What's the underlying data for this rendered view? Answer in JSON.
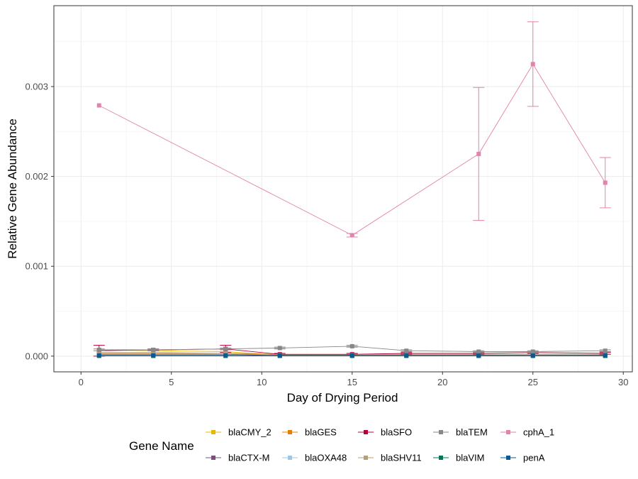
{
  "chart_data": {
    "type": "line",
    "xlabel": "Day of Drying Period",
    "ylabel": "Relative Gene Abundance",
    "xlim": [
      -1.5,
      30.5
    ],
    "ylim": [
      -0.000175,
      0.0039
    ],
    "x_ticks": [
      0,
      5,
      10,
      15,
      20,
      25,
      30
    ],
    "x_tick_labels": [
      "0",
      "5",
      "10",
      "15",
      "20",
      "25",
      "30"
    ],
    "y_ticks": [
      0,
      0.001,
      0.002,
      0.003
    ],
    "y_tick_labels": [
      "0.000",
      "0.001",
      "0.002",
      "0.003"
    ],
    "y_minor_ticks": [
      0.0005,
      0.0015,
      0.0025,
      0.0035
    ],
    "x_minor_ticks": [
      2.5,
      7.5,
      12.5,
      17.5,
      22.5,
      27.5
    ],
    "grid": true,
    "legend": {
      "title": "Gene Name",
      "position": "bottom"
    },
    "series": [
      {
        "name": "blaCMY_2",
        "color": "#E7B800",
        "x": [
          1,
          4,
          8,
          11,
          15,
          18,
          22,
          25,
          29
        ],
        "y": [
          7e-05,
          6e-05,
          5e-05,
          1e-05,
          1e-05,
          1e-05,
          1e-05,
          1e-05,
          1e-05
        ]
      },
      {
        "name": "blaCTX-M",
        "color": "#7A4F80",
        "x": [
          1,
          4,
          8,
          11,
          15,
          18,
          22,
          25,
          29
        ],
        "y": [
          2e-05,
          2e-05,
          2e-05,
          1e-05,
          1e-05,
          1e-05,
          1e-05,
          1e-05,
          1e-05
        ]
      },
      {
        "name": "blaGES",
        "color": "#E77E00",
        "x": [
          1,
          4,
          8,
          11,
          15,
          18,
          22,
          25,
          29
        ],
        "y": [
          3e-05,
          3e-05,
          3e-05,
          2e-05,
          2e-05,
          2e-05,
          2e-05,
          2e-05,
          2e-05
        ]
      },
      {
        "name": "blaOXA48",
        "color": "#9CC7E8",
        "x": [
          1,
          4,
          8,
          11,
          15,
          18,
          22,
          25,
          29
        ],
        "y": [
          5e-06,
          5e-06,
          5e-06,
          5e-06,
          5e-06,
          5e-06,
          5e-06,
          5e-06,
          5e-06
        ]
      },
      {
        "name": "blaSFO",
        "color": "#B3003C",
        "x": [
          1,
          4,
          8,
          11,
          15,
          18,
          22,
          25,
          29
        ],
        "y": [
          6e-05,
          7e-05,
          8e-05,
          2e-05,
          2e-05,
          3e-05,
          3e-05,
          4e-05,
          3e-05
        ],
        "err": [
          6e-05,
          1e-05,
          4e-05,
          1e-05,
          1e-05,
          1e-05,
          1e-05,
          1e-05,
          1e-05
        ]
      },
      {
        "name": "blaSHV11",
        "color": "#B3A079",
        "x": [
          1,
          4,
          8,
          11,
          15,
          18,
          22,
          25,
          29
        ],
        "y": [
          4e-05,
          4e-05,
          3e-05,
          1e-05,
          1e-05,
          1e-05,
          1e-05,
          1e-05,
          1e-05
        ]
      },
      {
        "name": "blaTEM",
        "color": "#878787",
        "x": [
          1,
          4,
          8,
          11,
          15,
          18,
          22,
          25,
          29
        ],
        "y": [
          7e-05,
          7e-05,
          8e-05,
          9e-05,
          0.00011,
          6e-05,
          5e-05,
          5e-05,
          6e-05
        ],
        "err": [
          1e-05,
          1e-05,
          1e-05,
          1e-05,
          1e-05,
          1e-05,
          1e-05,
          1e-05,
          1e-05
        ]
      },
      {
        "name": "blaVIM",
        "color": "#00775A",
        "x": [
          1,
          4,
          8,
          11,
          15,
          18,
          22,
          25,
          29
        ],
        "y": [
          3e-06,
          3e-06,
          3e-06,
          3e-06,
          3e-06,
          3e-06,
          3e-06,
          3e-06,
          3e-06
        ]
      },
      {
        "name": "cphA_1",
        "color": "#E382AC",
        "x": [
          1,
          15,
          22,
          25,
          29
        ],
        "y": [
          0.00279,
          0.001345,
          0.00225,
          0.00325,
          0.00193
        ],
        "err": [
          0.0,
          2e-05,
          0.00074,
          0.00047,
          0.00028
        ]
      },
      {
        "name": "penA",
        "color": "#0B5994",
        "x": [
          1,
          4,
          8,
          11,
          15,
          18,
          22,
          25,
          29
        ],
        "y": [
          8e-06,
          8e-06,
          8e-06,
          6e-06,
          6e-06,
          6e-06,
          6e-06,
          6e-06,
          6e-06
        ]
      }
    ]
  }
}
